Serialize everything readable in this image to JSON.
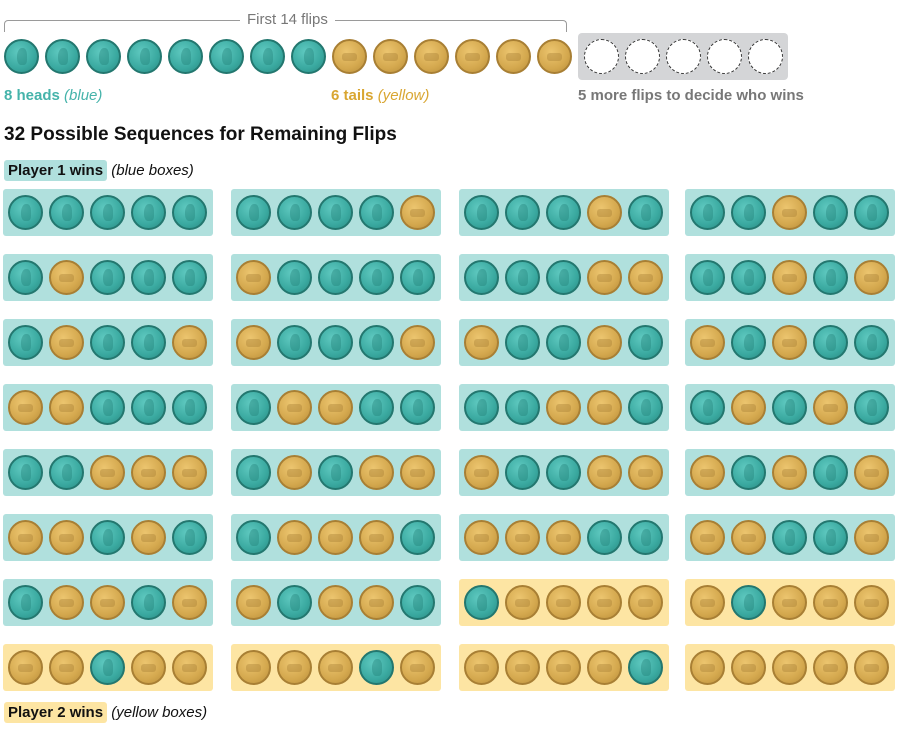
{
  "header": {
    "bracket_label": "First 14 flips",
    "first_flips": [
      "H",
      "H",
      "H",
      "H",
      "H",
      "H",
      "H",
      "H",
      "T",
      "T",
      "T",
      "T",
      "T",
      "T"
    ],
    "remaining_count": 5,
    "heads_count_label": "8 heads",
    "heads_note": "(blue)",
    "tails_count_label": "6 tails",
    "tails_note": "(yellow)",
    "remaining_label": "5 more flips to decide who wins"
  },
  "title": "32 Possible Sequences for Remaining Flips",
  "legend": {
    "player1": {
      "label": "Player 1 wins",
      "note": "(blue boxes)"
    },
    "player2": {
      "label": "Player 2 wins",
      "note": "(yellow boxes)"
    }
  },
  "colors": {
    "heads": "#3aa9a0",
    "tails": "#d4a84e",
    "player1_box": "#b0e0dd",
    "player2_box": "#fde5a3",
    "pending_box": "#d4d5d7"
  },
  "sequences": [
    {
      "flips": "HHHHH",
      "winner": 1
    },
    {
      "flips": "HHHHT",
      "winner": 1
    },
    {
      "flips": "HHHTH",
      "winner": 1
    },
    {
      "flips": "HHTHH",
      "winner": 1
    },
    {
      "flips": "HTHHH",
      "winner": 1
    },
    {
      "flips": "THHHH",
      "winner": 1
    },
    {
      "flips": "HHHTT",
      "winner": 1
    },
    {
      "flips": "HHTHT",
      "winner": 1
    },
    {
      "flips": "HTHHT",
      "winner": 1
    },
    {
      "flips": "THHHT",
      "winner": 1
    },
    {
      "flips": "THHTH",
      "winner": 1
    },
    {
      "flips": "THTHH",
      "winner": 1
    },
    {
      "flips": "TTHHH",
      "winner": 1
    },
    {
      "flips": "HTTHH",
      "winner": 1
    },
    {
      "flips": "HHTTH",
      "winner": 1
    },
    {
      "flips": "HTHTH",
      "winner": 1
    },
    {
      "flips": "HHTTT",
      "winner": 1
    },
    {
      "flips": "HTHTT",
      "winner": 1
    },
    {
      "flips": "THHTT",
      "winner": 1
    },
    {
      "flips": "THTHT",
      "winner": 1
    },
    {
      "flips": "TTHTH",
      "winner": 1
    },
    {
      "flips": "HTTTH",
      "winner": 1
    },
    {
      "flips": "TTTHH",
      "winner": 1
    },
    {
      "flips": "TTHHT",
      "winner": 1
    },
    {
      "flips": "HTTHT",
      "winner": 1
    },
    {
      "flips": "THTTH",
      "winner": 1
    },
    {
      "flips": "HTTTT",
      "winner": 2
    },
    {
      "flips": "THTTT",
      "winner": 2
    },
    {
      "flips": "TTHTT",
      "winner": 2
    },
    {
      "flips": "TTTHT",
      "winner": 2
    },
    {
      "flips": "TTTTH",
      "winner": 2
    },
    {
      "flips": "TTTTT",
      "winner": 2
    }
  ]
}
